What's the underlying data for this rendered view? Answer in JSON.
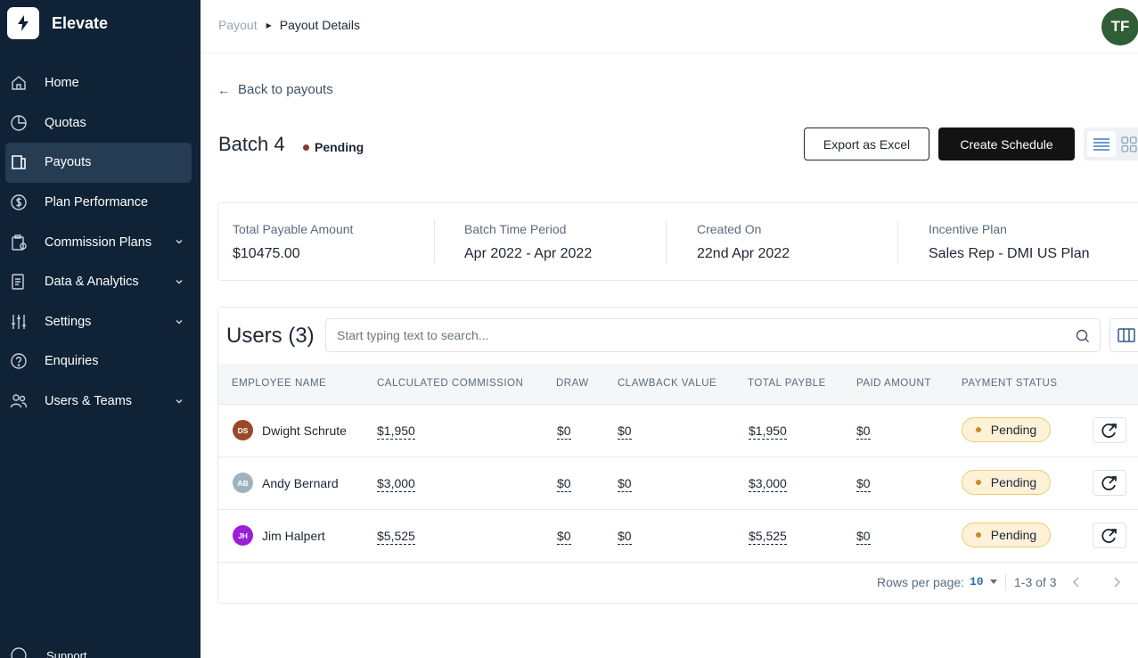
{
  "brand": {
    "name": "Elevate"
  },
  "sidebar": {
    "items": [
      {
        "label": "Home",
        "icon": "home-icon"
      },
      {
        "label": "Quotas",
        "icon": "pie-chart-icon"
      },
      {
        "label": "Payouts",
        "icon": "wallet-icon",
        "active": true
      },
      {
        "label": "Plan Performance",
        "icon": "dollar-circle-icon"
      },
      {
        "label": "Commission Plans",
        "icon": "clipboard-icon",
        "expandable": true
      },
      {
        "label": "Data & Analytics",
        "icon": "document-icon",
        "expandable": true
      },
      {
        "label": "Settings",
        "icon": "sliders-icon",
        "expandable": true
      },
      {
        "label": "Enquiries",
        "icon": "question-circle-icon"
      },
      {
        "label": "Users & Teams",
        "icon": "users-icon",
        "expandable": true
      }
    ],
    "support_label": "Support"
  },
  "breadcrumb": {
    "root": "Payout",
    "current": "Payout Details"
  },
  "user": {
    "initials": "TF"
  },
  "back_label": "Back to payouts",
  "batch": {
    "title": "Batch 4",
    "status": "Pending"
  },
  "actions": {
    "export_label": "Export as Excel",
    "create_label": "Create Schedule"
  },
  "summary": [
    {
      "label": "Total Payable Amount",
      "value": "$10475.00"
    },
    {
      "label": "Batch Time Period",
      "value": "Apr 2022 - Apr 2022"
    },
    {
      "label": "Created On",
      "value": "22nd Apr 2022"
    },
    {
      "label": "Incentive Plan",
      "value": "Sales Rep - DMI US Plan"
    }
  ],
  "users": {
    "title": "Users (3)",
    "search_placeholder": "Start typing text to search...",
    "columns": [
      "EMPLOYEE NAME",
      "CALCULATED COMMISSION",
      "DRAW",
      "CLAWBACK VALUE",
      "TOTAL PAYBLE",
      "PAID AMOUNT",
      "PAYMENT STATUS"
    ],
    "rows": [
      {
        "initials": "DS",
        "name": "Dwight Schrute",
        "avatar_color": "#9a4a2a",
        "commission": "$1,950",
        "draw": "$0",
        "clawback": "$0",
        "total": "$1,950",
        "paid": "$0",
        "status": "Pending"
      },
      {
        "initials": "AB",
        "name": "Andy Bernard",
        "avatar_color": "#9fb3bf",
        "commission": "$3,000",
        "draw": "$0",
        "clawback": "$0",
        "total": "$3,000",
        "paid": "$0",
        "status": "Pending"
      },
      {
        "initials": "JH",
        "name": "Jim Halpert",
        "avatar_color": "#9b1fd6",
        "commission": "$5,525",
        "draw": "$0",
        "clawback": "$0",
        "total": "$5,525",
        "paid": "$0",
        "status": "Pending"
      }
    ]
  },
  "pagination": {
    "rows_label": "Rows per page:",
    "rows_value": "10",
    "range": "1-3 of 3"
  }
}
